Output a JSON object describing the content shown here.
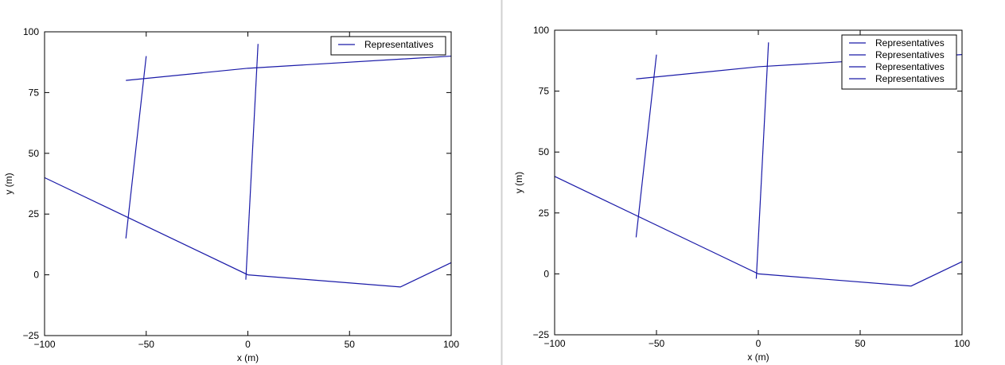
{
  "colors": {
    "series": "#1a1aa8",
    "axes": "#000000",
    "divider": "#d0d0d0",
    "background": "#ffffff"
  },
  "chart_data": [
    {
      "type": "line",
      "xlabel": "x (m)",
      "ylabel": "y (m)",
      "xlim": [
        -100,
        100
      ],
      "ylim": [
        -25,
        100
      ],
      "xticks": [
        -100,
        -50,
        0,
        50,
        100
      ],
      "yticks": [
        -25,
        0,
        25,
        50,
        75,
        100
      ],
      "xtick_labels": [
        "−100",
        "−50",
        "0",
        "50",
        "100"
      ],
      "ytick_labels": [
        "−25",
        "0",
        "25",
        "50",
        "75",
        "100"
      ],
      "grid": false,
      "legend": {
        "placement": "top-right",
        "entries": [
          "Representatives"
        ]
      },
      "series": [
        {
          "name": "Representatives",
          "x": [
            -100,
            0,
            75,
            100
          ],
          "y": [
            40,
            0,
            -5,
            5
          ]
        },
        {
          "x": [
            -60,
            0,
            100
          ],
          "y": [
            80,
            85,
            90
          ]
        },
        {
          "x": [
            -60,
            -50
          ],
          "y": [
            15,
            90
          ]
        },
        {
          "x": [
            -1,
            5
          ],
          "y": [
            -2,
            95
          ]
        }
      ]
    },
    {
      "type": "line",
      "xlabel": "x (m)",
      "ylabel": "y (m)",
      "xlim": [
        -100,
        100
      ],
      "ylim": [
        -25,
        100
      ],
      "xticks": [
        -100,
        -50,
        0,
        50,
        100
      ],
      "yticks": [
        -25,
        0,
        25,
        50,
        75,
        100
      ],
      "xtick_labels": [
        "−100",
        "−50",
        "0",
        "50",
        "100"
      ],
      "ytick_labels": [
        "−25",
        "0",
        "25",
        "50",
        "75",
        "100"
      ],
      "grid": false,
      "legend": {
        "placement": "top-right",
        "entries": [
          "Representatives",
          "Representatives",
          "Representatives",
          "Representatives"
        ]
      },
      "series": [
        {
          "name": "Representatives",
          "x": [
            -100,
            0,
            75,
            100
          ],
          "y": [
            40,
            0,
            -5,
            5
          ]
        },
        {
          "name": "Representatives",
          "x": [
            -60,
            0,
            100
          ],
          "y": [
            80,
            85,
            90
          ]
        },
        {
          "name": "Representatives",
          "x": [
            -60,
            -50
          ],
          "y": [
            15,
            90
          ]
        },
        {
          "name": "Representatives",
          "x": [
            -1,
            5
          ],
          "y": [
            -2,
            95
          ]
        }
      ]
    }
  ]
}
